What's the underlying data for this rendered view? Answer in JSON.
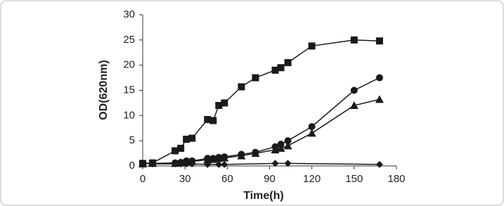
{
  "chart_data": {
    "type": "line",
    "x_label": "Time(h)",
    "y_label": "OD(620nm)",
    "xlim": [
      0,
      180
    ],
    "xticks": [
      0,
      30,
      60,
      90,
      120,
      150,
      180
    ],
    "ylim": [
      0,
      30
    ],
    "yticks": [
      0,
      5,
      10,
      15,
      20,
      25,
      30
    ],
    "grid": false,
    "series": [
      {
        "marker": "square",
        "color": "#1a1a1a",
        "x": [
          0,
          7,
          23,
          27,
          31,
          35,
          46,
          50,
          54,
          58,
          70,
          80,
          94,
          98,
          103,
          120,
          150,
          168
        ],
        "values": [
          0.5,
          0.6,
          3,
          3.5,
          5.3,
          5.5,
          9.2,
          9,
          12,
          12.5,
          15.7,
          17.5,
          19,
          19.5,
          20.5,
          23.8,
          25,
          24.8
        ]
      },
      {
        "marker": "circle",
        "color": "#1a1a1a",
        "x": [
          0,
          7,
          23,
          27,
          31,
          35,
          46,
          50,
          54,
          58,
          70,
          80,
          94,
          98,
          103,
          120,
          150,
          168
        ],
        "values": [
          0.4,
          0.5,
          0.6,
          0.7,
          1,
          1,
          1.5,
          1.5,
          1.7,
          1.8,
          2.3,
          2.7,
          3.8,
          4.3,
          5,
          7.8,
          15,
          17.5
        ]
      },
      {
        "marker": "triangle",
        "color": "#1a1a1a",
        "x": [
          0,
          7,
          23,
          27,
          31,
          35,
          46,
          50,
          54,
          58,
          70,
          80,
          94,
          98,
          103,
          120,
          150,
          168
        ],
        "values": [
          0.4,
          0.5,
          0.5,
          0.6,
          0.8,
          0.9,
          1.2,
          1.3,
          1.5,
          1.6,
          2,
          2.5,
          3.2,
          3.5,
          4,
          6.5,
          12,
          13.2
        ]
      },
      {
        "marker": "diamond",
        "color": "#1a1a1a",
        "x": [
          0,
          7,
          23,
          27,
          31,
          35,
          46,
          54,
          58,
          94,
          103,
          168
        ],
        "values": [
          0.5,
          0.4,
          0.4,
          0.4,
          0.4,
          0.4,
          0.3,
          0.3,
          0.3,
          0.5,
          0.5,
          0.3
        ]
      }
    ]
  }
}
